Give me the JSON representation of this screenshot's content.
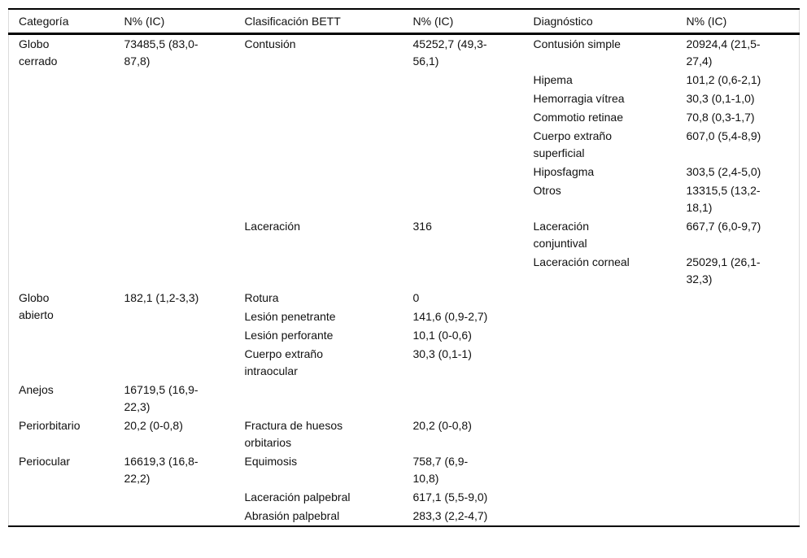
{
  "colors": {
    "background": "#ffffff",
    "text": "#111111",
    "rule_black": "#000000",
    "side_border": "#dcdcdc"
  },
  "table": {
    "headers": [
      "Categoría",
      "N% (IC)",
      "Clasificación BETT",
      "N% (IC)",
      "Diagnóstico",
      "N% (IC)"
    ],
    "rows": [
      [
        {
          "text": "Globo\ncerrado",
          "rowspan": 9
        },
        {
          "text": "73485,5 (83,0-\n87,8)",
          "rowspan": 9
        },
        {
          "text": "Contusión",
          "rowspan": 7
        },
        {
          "text": "45252,7 (49,3-\n56,1)",
          "rowspan": 7
        },
        {
          "text": "Contusión simple"
        },
        {
          "text": "20924,4 (21,5-\n27,4)"
        }
      ],
      [
        {
          "text": "Hipema"
        },
        {
          "text": "101,2 (0,6-2,1)"
        }
      ],
      [
        {
          "text": "Hemorragia vítrea"
        },
        {
          "text": "30,3 (0,1-1,0)"
        }
      ],
      [
        {
          "text": "Commotio retinae"
        },
        {
          "text": "70,8 (0,3-1,7)"
        }
      ],
      [
        {
          "text": "Cuerpo extraño\nsuperficial"
        },
        {
          "text": "607,0 (5,4-8,9)"
        }
      ],
      [
        {
          "text": "Hiposfagma"
        },
        {
          "text": "303,5 (2,4-5,0)"
        }
      ],
      [
        {
          "text": "Otros"
        },
        {
          "text": "13315,5 (13,2-\n18,1)"
        }
      ],
      [
        {
          "text": "Laceración",
          "rowspan": 2
        },
        {
          "text": "316",
          "rowspan": 2
        },
        {
          "text": "Laceración\nconjuntival"
        },
        {
          "text": "667,7 (6,0-9,7)"
        }
      ],
      [
        {
          "text": "Laceración corneal"
        },
        {
          "text": "25029,1 (26,1-\n32,3)"
        }
      ],
      [
        {
          "text": "Globo\nabierto",
          "rowspan": 4
        },
        {
          "text": "182,1 (1,2-3,3)",
          "rowspan": 4
        },
        {
          "text": "Rotura"
        },
        {
          "text": "0"
        },
        {
          "text": ""
        },
        {
          "text": ""
        }
      ],
      [
        {
          "text": "Lesión penetrante"
        },
        {
          "text": "141,6 (0,9-2,7)"
        },
        {
          "text": ""
        },
        {
          "text": ""
        }
      ],
      [
        {
          "text": "Lesión perforante"
        },
        {
          "text": "10,1 (0-0,6)"
        },
        {
          "text": ""
        },
        {
          "text": ""
        }
      ],
      [
        {
          "text": "Cuerpo extraño\nintraocular"
        },
        {
          "text": "30,3 (0,1-1)"
        },
        {
          "text": ""
        },
        {
          "text": ""
        }
      ],
      [
        {
          "text": "Anejos"
        },
        {
          "text": "16719,5 (16,9-\n22,3)"
        },
        {
          "text": ""
        },
        {
          "text": ""
        },
        {
          "text": ""
        },
        {
          "text": ""
        }
      ],
      [
        {
          "text": "Periorbitario"
        },
        {
          "text": "20,2 (0-0,8)"
        },
        {
          "text": "Fractura de huesos\norbitarios"
        },
        {
          "text": "20,2 (0-0,8)"
        },
        {
          "text": ""
        },
        {
          "text": ""
        }
      ],
      [
        {
          "text": "Periocular",
          "rowspan": 3
        },
        {
          "text": "16619,3 (16,8-\n22,2)",
          "rowspan": 3
        },
        {
          "text": "Equimosis"
        },
        {
          "text": "758,7 (6,9-\n10,8)"
        },
        {
          "text": ""
        },
        {
          "text": ""
        }
      ],
      [
        {
          "text": "Laceración palpebral"
        },
        {
          "text": "617,1 (5,5-9,0)"
        },
        {
          "text": ""
        },
        {
          "text": ""
        }
      ],
      [
        {
          "text": "Abrasión palpebral"
        },
        {
          "text": "283,3 (2,2-4,7)"
        },
        {
          "text": ""
        },
        {
          "text": ""
        }
      ]
    ]
  }
}
